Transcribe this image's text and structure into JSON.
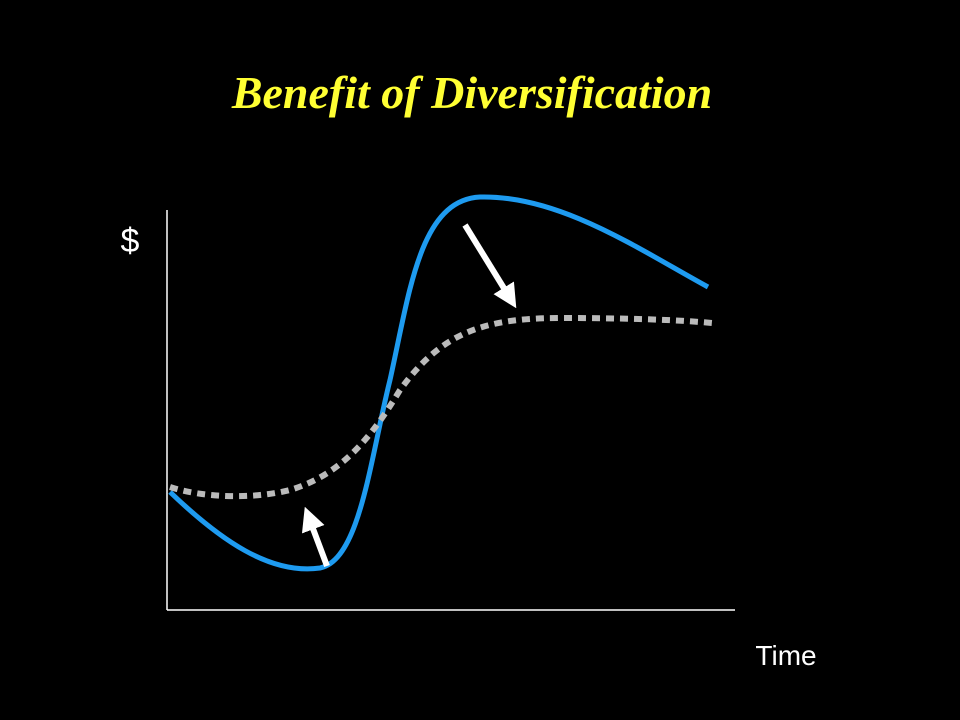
{
  "title": "Benefit of Diversification",
  "axes": {
    "y_label": "$",
    "x_label": "Time"
  }
}
